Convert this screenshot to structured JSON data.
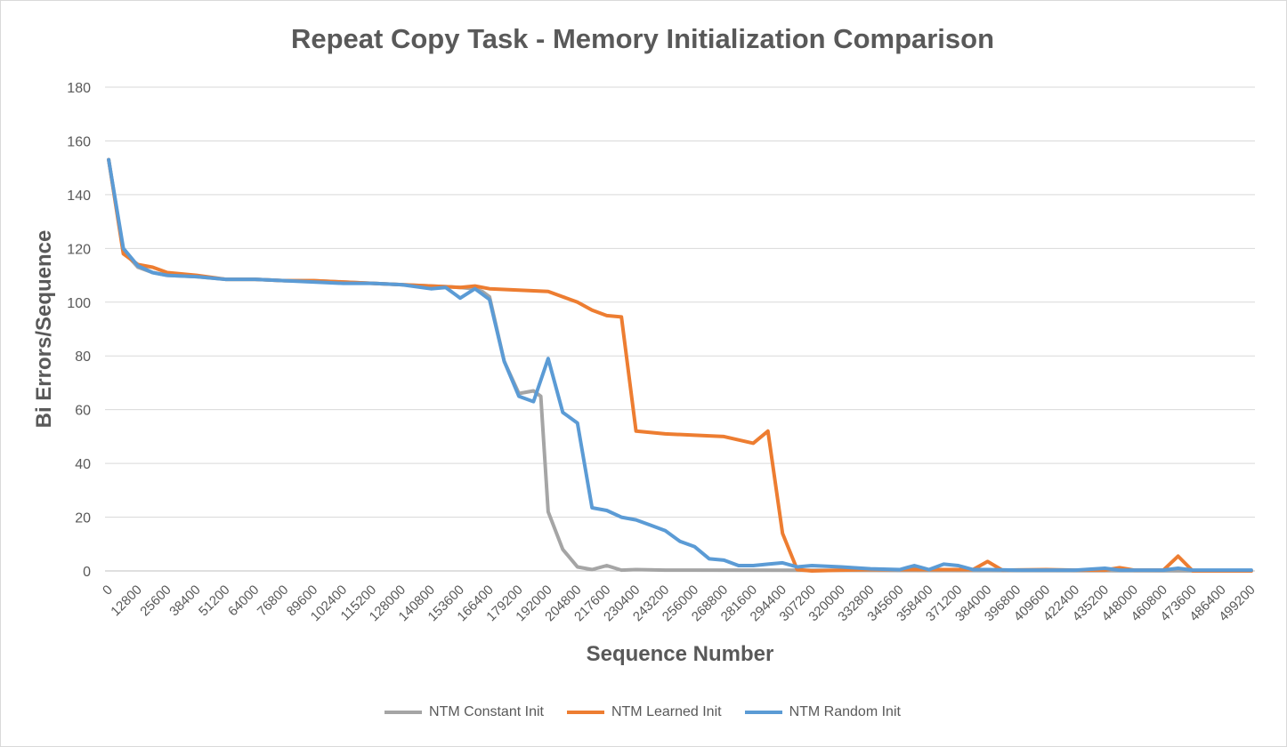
{
  "chart_data": {
    "type": "line",
    "title": "Repeat Copy Task - Memory Initialization Comparison",
    "xlabel": "Sequence Number",
    "ylabel": "Bi Errors/Sequence",
    "ylim": [
      0,
      180
    ],
    "yticks": [
      0,
      20,
      40,
      60,
      80,
      100,
      120,
      140,
      160,
      180
    ],
    "grid": true,
    "legend": "bottom",
    "x_step": 3200,
    "x_count": 157,
    "xtick_labels": [
      "0",
      "12800",
      "25600",
      "38400",
      "51200",
      "64000",
      "76800",
      "89600",
      "102400",
      "115200",
      "128000",
      "140800",
      "153600",
      "166400",
      "179200",
      "192000",
      "204800",
      "217600",
      "230400",
      "243200",
      "256000",
      "268800",
      "281600",
      "294400",
      "307200",
      "320000",
      "332800",
      "345600",
      "358400",
      "371200",
      "384000",
      "396800",
      "409600",
      "422400",
      "435200",
      "448000",
      "460800",
      "473600",
      "486400",
      "499200"
    ],
    "series": [
      {
        "name": "NTM Constant Init",
        "color": "#a5a5a5",
        "points": [
          [
            0,
            153
          ],
          [
            6400,
            119
          ],
          [
            12800,
            113
          ],
          [
            19200,
            111
          ],
          [
            25600,
            110
          ],
          [
            38400,
            109.5
          ],
          [
            51200,
            108.5
          ],
          [
            64000,
            108.5
          ],
          [
            76800,
            108
          ],
          [
            89600,
            108
          ],
          [
            102400,
            107.5
          ],
          [
            115200,
            107
          ],
          [
            128000,
            106.5
          ],
          [
            140800,
            106
          ],
          [
            153600,
            105.5
          ],
          [
            160000,
            105
          ],
          [
            163200,
            104
          ],
          [
            166400,
            102
          ],
          [
            172800,
            78
          ],
          [
            179200,
            66
          ],
          [
            185600,
            67
          ],
          [
            188800,
            65
          ],
          [
            192000,
            22
          ],
          [
            198400,
            8
          ],
          [
            204800,
            1.5
          ],
          [
            211200,
            0.5
          ],
          [
            217600,
            2
          ],
          [
            224000,
            0.3
          ],
          [
            230400,
            0.5
          ],
          [
            243200,
            0.3
          ],
          [
            256000,
            0.3
          ],
          [
            499200,
            0
          ]
        ]
      },
      {
        "name": "NTM Learned Init",
        "color": "#ed7d31",
        "points": [
          [
            0,
            153
          ],
          [
            6400,
            118
          ],
          [
            12800,
            114
          ],
          [
            19200,
            113
          ],
          [
            25600,
            111
          ],
          [
            38400,
            110
          ],
          [
            51200,
            108.5
          ],
          [
            64000,
            108.5
          ],
          [
            76800,
            108
          ],
          [
            89600,
            108
          ],
          [
            102400,
            107.5
          ],
          [
            115200,
            107
          ],
          [
            128000,
            106.5
          ],
          [
            140800,
            106
          ],
          [
            153600,
            105.5
          ],
          [
            160000,
            106
          ],
          [
            166400,
            105
          ],
          [
            179200,
            104.5
          ],
          [
            192000,
            104
          ],
          [
            198400,
            102
          ],
          [
            204800,
            100
          ],
          [
            211200,
            97
          ],
          [
            217600,
            95
          ],
          [
            224000,
            94.5
          ],
          [
            230400,
            52
          ],
          [
            243200,
            51
          ],
          [
            256000,
            50.5
          ],
          [
            268800,
            50
          ],
          [
            281600,
            47.5
          ],
          [
            288000,
            52
          ],
          [
            294400,
            14
          ],
          [
            300800,
            0.5
          ],
          [
            307200,
            0
          ],
          [
            320000,
            0.3
          ],
          [
            332800,
            0.5
          ],
          [
            345600,
            0.5
          ],
          [
            358400,
            0.5
          ],
          [
            371200,
            0.5
          ],
          [
            377600,
            0.5
          ],
          [
            384000,
            3.5
          ],
          [
            390400,
            0.3
          ],
          [
            409600,
            0.5
          ],
          [
            422400,
            0.3
          ],
          [
            435200,
            0.3
          ],
          [
            441600,
            1.2
          ],
          [
            448000,
            0.3
          ],
          [
            460800,
            0.3
          ],
          [
            467200,
            5.5
          ],
          [
            473600,
            0
          ],
          [
            499200,
            0
          ]
        ]
      },
      {
        "name": "NTM Random Init",
        "color": "#5b9bd5",
        "points": [
          [
            0,
            153
          ],
          [
            6400,
            120
          ],
          [
            12800,
            113.5
          ],
          [
            19200,
            111
          ],
          [
            25600,
            110
          ],
          [
            38400,
            109.5
          ],
          [
            51200,
            108.5
          ],
          [
            64000,
            108.5
          ],
          [
            76800,
            108
          ],
          [
            89600,
            107.5
          ],
          [
            102400,
            107
          ],
          [
            115200,
            107
          ],
          [
            128000,
            106.5
          ],
          [
            140800,
            105
          ],
          [
            147200,
            105.5
          ],
          [
            153600,
            101.5
          ],
          [
            160000,
            105
          ],
          [
            166400,
            101
          ],
          [
            172800,
            78
          ],
          [
            179200,
            65
          ],
          [
            185600,
            63
          ],
          [
            192000,
            79
          ],
          [
            198400,
            59
          ],
          [
            204800,
            55
          ],
          [
            211200,
            23.5
          ],
          [
            217600,
            22.5
          ],
          [
            224000,
            20
          ],
          [
            230400,
            19
          ],
          [
            236800,
            17
          ],
          [
            243200,
            15
          ],
          [
            249600,
            11
          ],
          [
            256000,
            9
          ],
          [
            262400,
            4.5
          ],
          [
            268800,
            4
          ],
          [
            275200,
            2
          ],
          [
            281600,
            2
          ],
          [
            288000,
            2.5
          ],
          [
            294400,
            3
          ],
          [
            300800,
            1.5
          ],
          [
            307200,
            2
          ],
          [
            320000,
            1.5
          ],
          [
            332800,
            0.8
          ],
          [
            345600,
            0.5
          ],
          [
            352000,
            2
          ],
          [
            358400,
            0.5
          ],
          [
            364800,
            2.5
          ],
          [
            371200,
            2
          ],
          [
            377600,
            0.5
          ],
          [
            384000,
            0.5
          ],
          [
            396800,
            0.3
          ],
          [
            409600,
            0.3
          ],
          [
            422400,
            0.3
          ],
          [
            435200,
            1
          ],
          [
            441600,
            0.3
          ],
          [
            460800,
            0.3
          ],
          [
            467200,
            1
          ],
          [
            473600,
            0.3
          ],
          [
            499200,
            0.3
          ]
        ]
      }
    ]
  }
}
